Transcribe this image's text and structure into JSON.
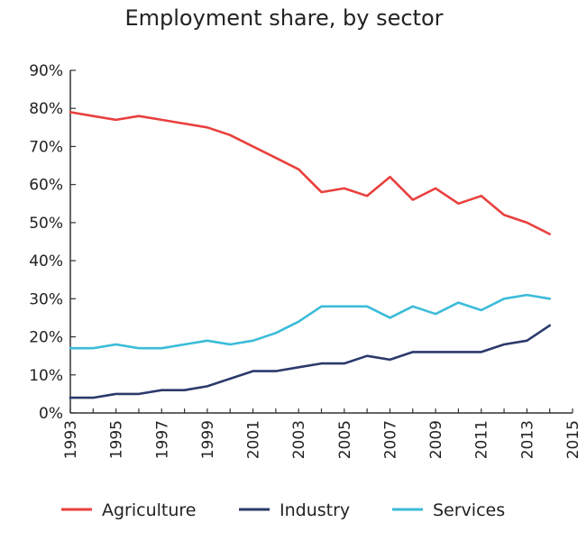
{
  "chart_data": {
    "type": "line",
    "title": "Employment share, by sector",
    "xlabel": "",
    "ylabel": "",
    "x": [
      1993,
      1994,
      1995,
      1996,
      1997,
      1998,
      1999,
      2000,
      2001,
      2002,
      2003,
      2004,
      2005,
      2006,
      2007,
      2008,
      2009,
      2010,
      2011,
      2012,
      2013,
      2014
    ],
    "xlim": [
      1993,
      2015
    ],
    "ylim": [
      0,
      90
    ],
    "x_ticks": [
      "1993",
      "1995",
      "1997",
      "1999",
      "2001",
      "2003",
      "2005",
      "2007",
      "2009",
      "2011",
      "2013",
      "2015"
    ],
    "y_ticks": [
      "0%",
      "10%",
      "20%",
      "30%",
      "40%",
      "50%",
      "60%",
      "70%",
      "80%",
      "90%"
    ],
    "grid": false,
    "legend_position": "bottom",
    "series": [
      {
        "name": "Agriculture",
        "color": "#e8403e",
        "values": [
          79,
          78,
          77,
          78,
          77,
          76,
          75,
          73,
          70,
          67,
          64,
          58,
          59,
          57,
          62,
          56,
          59,
          55,
          57,
          52,
          50,
          47
        ]
      },
      {
        "name": "Industry",
        "color": "#2b3a6b",
        "values": [
          4,
          4,
          5,
          5,
          6,
          6,
          7,
          9,
          11,
          11,
          12,
          13,
          13,
          15,
          14,
          16,
          16,
          16,
          16,
          18,
          19,
          23
        ]
      },
      {
        "name": "Services",
        "color": "#3bbcd9",
        "values": [
          17,
          17,
          18,
          17,
          17,
          18,
          19,
          18,
          19,
          21,
          24,
          28,
          28,
          28,
          25,
          28,
          26,
          29,
          27,
          30,
          31,
          30
        ]
      }
    ]
  }
}
